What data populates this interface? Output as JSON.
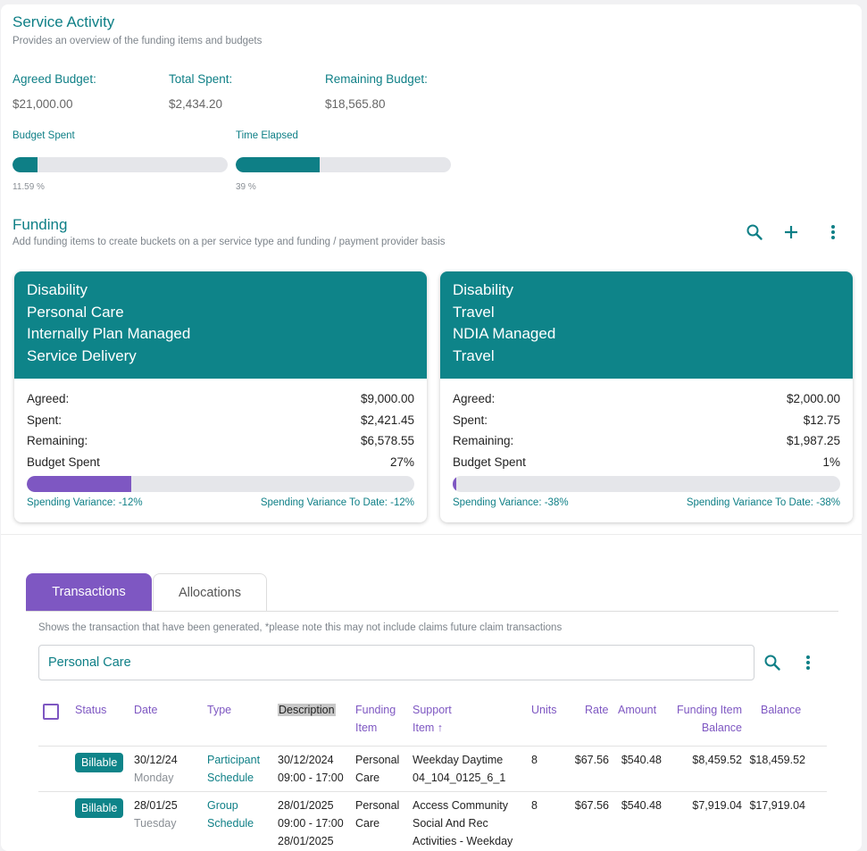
{
  "service_activity": {
    "title": "Service Activity",
    "subtitle": "Provides an overview of the funding items and budgets",
    "agreed_budget_label": "Agreed Budget:",
    "agreed_budget_value": "$21,000.00",
    "total_spent_label": "Total Spent:",
    "total_spent_value": "$2,434.20",
    "remaining_budget_label": "Remaining Budget:",
    "remaining_budget_value": "$18,565.80",
    "budget_spent_label": "Budget Spent",
    "budget_spent_pct": "11.59 %",
    "budget_spent_fraction": 0.1159,
    "time_elapsed_label": "Time Elapsed",
    "time_elapsed_pct": "39 %",
    "time_elapsed_fraction": 0.39
  },
  "funding": {
    "title": "Funding",
    "subtitle": "Add funding items to create buckets on a per service type and funding / payment provider basis",
    "icons": [
      "search-icon",
      "plus-icon",
      "more-vert-icon"
    ],
    "cards": [
      {
        "lines": [
          "Disability",
          "Personal Care",
          "Internally Plan Managed",
          "Service Delivery"
        ],
        "agreed_label": "Agreed:",
        "agreed": "$9,000.00",
        "spent_label": "Spent:",
        "spent": "$2,421.45",
        "remaining_label": "Remaining:",
        "remaining": "$6,578.55",
        "budget_spent_label": "Budget Spent",
        "budget_spent": "27%",
        "budget_spent_fraction": 0.27,
        "variance": "Spending Variance: -12%",
        "variance_to_date": "Spending Variance To Date: -12%"
      },
      {
        "lines": [
          "Disability",
          "Travel",
          "NDIA Managed",
          "Travel"
        ],
        "agreed_label": "Agreed:",
        "agreed": "$2,000.00",
        "spent_label": "Spent:",
        "spent": "$12.75",
        "remaining_label": "Remaining:",
        "remaining": "$1,987.25",
        "budget_spent_label": "Budget Spent",
        "budget_spent": "1%",
        "budget_spent_fraction": 0.01,
        "variance": "Spending Variance: -38%",
        "variance_to_date": "Spending Variance To Date: -38%"
      }
    ]
  },
  "tabs": [
    {
      "label": "Transactions",
      "active": true
    },
    {
      "label": "Allocations",
      "active": false
    }
  ],
  "transactions": {
    "note": "Shows the transaction that have been generated, *please note this may not include claims future claim transactions",
    "search_value": "Personal Care",
    "headers": {
      "status": "Status",
      "date": "Date",
      "type": "Type",
      "description": "Description",
      "funding_item_1": "Funding",
      "funding_item_2": "Item",
      "support_item_1": "Support",
      "support_item_2": "Item ↑",
      "units": "Units",
      "rate": "Rate",
      "amount": "Amount",
      "fi_balance_1": "Funding Item",
      "fi_balance_2": "Balance",
      "balance": "Balance"
    },
    "rows": [
      {
        "status": "Billable",
        "date": "30/12/24",
        "day": "Monday",
        "type_1": "Participant",
        "type_2": "Schedule",
        "desc_1": "30/12/2024",
        "desc_2": "09:00 - 17:00",
        "desc_3": "",
        "funding_1": "Personal",
        "funding_2": "Care",
        "support_1": "Weekday Daytime",
        "support_2": "04_104_0125_6_1",
        "support_3": "",
        "units": "8",
        "rate": "$67.56",
        "amount": "$540.48",
        "fi_balance": "$8,459.52",
        "balance": "$18,459.52"
      },
      {
        "status": "Billable",
        "date": "28/01/25",
        "day": "Tuesday",
        "type_1": "Group",
        "type_2": "Schedule",
        "desc_1": "28/01/2025",
        "desc_2": "09:00 - 17:00",
        "desc_3": "28/01/2025",
        "funding_1": "Personal",
        "funding_2": "Care",
        "support_1": "Access Community",
        "support_2": "Social And Rec",
        "support_3": "Activities - Weekday",
        "units": "8",
        "rate": "$67.56",
        "amount": "$540.48",
        "fi_balance": "$7,919.04",
        "balance": "$17,919.04"
      }
    ]
  },
  "colors": {
    "teal": "#0e8489",
    "purple": "#7e57c2",
    "track": "#e5e6ea"
  }
}
